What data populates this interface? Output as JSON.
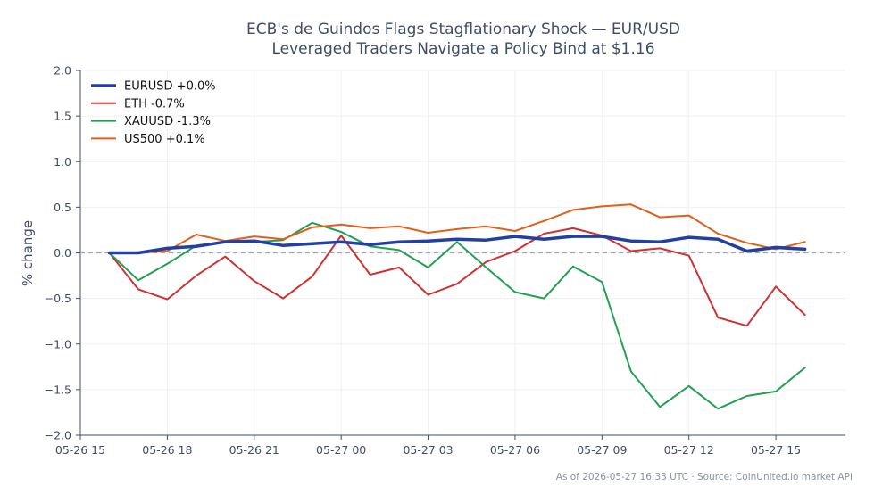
{
  "chart_data": {
    "type": "line",
    "title": "ECB's de Guindos Flags Stagflationary Shock — EUR/USD",
    "subtitle": "Leveraged Traders Navigate a Policy Bind at $1.16",
    "ylabel": "% change",
    "xlabel": "",
    "ylim": [
      -2.0,
      2.0
    ],
    "yticks": [
      {
        "v": 2.0,
        "label": "2.0"
      },
      {
        "v": 1.5,
        "label": "1.5"
      },
      {
        "v": 1.0,
        "label": "1.0"
      },
      {
        "v": 0.5,
        "label": "0.5"
      },
      {
        "v": 0.0,
        "label": "0.0"
      },
      {
        "v": -0.5,
        "label": "−0.5"
      },
      {
        "v": -1.0,
        "label": "−1.0"
      },
      {
        "v": -1.5,
        "label": "−1.5"
      },
      {
        "v": -2.0,
        "label": "−2.0"
      }
    ],
    "xlim": [
      -1.0,
      25.4
    ],
    "xticks": [
      {
        "v": -1,
        "label": "05-26 15"
      },
      {
        "v": 2,
        "label": "05-26 18"
      },
      {
        "v": 5,
        "label": "05-26 21"
      },
      {
        "v": 8,
        "label": "05-27 00"
      },
      {
        "v": 11,
        "label": "05-27 03"
      },
      {
        "v": 14,
        "label": "05-27 06"
      },
      {
        "v": 17,
        "label": "05-27 09"
      },
      {
        "v": 20,
        "label": "05-27 12"
      },
      {
        "v": 23,
        "label": "05-27 15"
      }
    ],
    "x_unit": "hours from 2026-05-26 16:00 UTC",
    "x": [
      0,
      1,
      2,
      3,
      4,
      5,
      6,
      7,
      8,
      9,
      10,
      11,
      12,
      13,
      14,
      15,
      16,
      17,
      18,
      19,
      20,
      21,
      22,
      23,
      24
    ],
    "baseline": 0.0,
    "grid": true,
    "legend_position": "top-left",
    "series": [
      {
        "name": "EURUSD +0.0%",
        "color": "#2340a0",
        "width": 3.5,
        "values": [
          0.0,
          0.0,
          0.05,
          0.07,
          0.12,
          0.13,
          0.08,
          0.1,
          0.12,
          0.09,
          0.12,
          0.13,
          0.15,
          0.14,
          0.18,
          0.15,
          0.18,
          0.18,
          0.13,
          0.12,
          0.17,
          0.15,
          0.02,
          0.06,
          0.04
        ]
      },
      {
        "name": "ETH -0.7%",
        "color": "#d03030",
        "width": 2,
        "values": [
          0.0,
          -0.4,
          -0.51,
          -0.25,
          -0.04,
          -0.31,
          -0.5,
          -0.26,
          0.19,
          -0.24,
          -0.16,
          -0.46,
          -0.34,
          -0.1,
          0.02,
          0.21,
          0.27,
          0.19,
          0.02,
          0.05,
          -0.03,
          -0.71,
          -0.8,
          -0.37,
          -0.68
        ]
      },
      {
        "name": "XAUUSD -1.3%",
        "color": "#22a050",
        "width": 2,
        "values": [
          0.0,
          -0.3,
          -0.12,
          0.08,
          0.12,
          0.12,
          0.14,
          0.33,
          0.23,
          0.07,
          0.03,
          -0.16,
          0.12,
          -0.16,
          -0.43,
          -0.5,
          -0.15,
          -0.32,
          -1.3,
          -1.69,
          -1.46,
          -1.71,
          -1.57,
          -1.52,
          -1.26
        ]
      },
      {
        "name": "US500 +0.1%",
        "color": "#e0601a",
        "width": 2,
        "values": [
          0.0,
          0.0,
          0.02,
          0.2,
          0.13,
          0.18,
          0.15,
          0.28,
          0.31,
          0.27,
          0.29,
          0.22,
          0.26,
          0.29,
          0.24,
          0.35,
          0.47,
          0.51,
          0.53,
          0.39,
          0.41,
          0.21,
          0.11,
          0.04,
          0.12
        ]
      }
    ]
  },
  "footer": "As of 2026-05-27 16:33 UTC · Source: CoinUnited.io market API"
}
